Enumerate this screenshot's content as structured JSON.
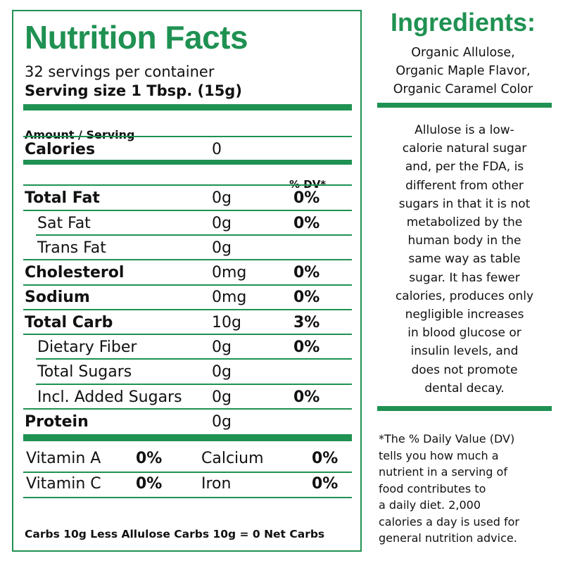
{
  "nutrition": {
    "title": "Nutrition Facts",
    "servings": "32 servings per container",
    "serving_size": "Serving size 1 Tbsp. (15g)",
    "amount_header": "Amount / Serving",
    "calories_label": "Calories",
    "calories_value": "0",
    "dv_header": "% DV*",
    "rows": [
      {
        "label": "Total Fat",
        "amount": "0g",
        "dv": "0%"
      },
      {
        "label": "Sat Fat",
        "amount": "0g",
        "dv": "0%"
      },
      {
        "label": "Trans Fat",
        "amount": "0g",
        "dv": ""
      },
      {
        "label": "Cholesterol",
        "amount": "0mg",
        "dv": "0%"
      },
      {
        "label": "Sodium",
        "amount": "0mg",
        "dv": "0%"
      },
      {
        "label": "Total Carb",
        "amount": "10g",
        "dv": "3%"
      },
      {
        "label": "Dietary Fiber",
        "amount": "0g",
        "dv": "0%"
      },
      {
        "label": "Total Sugars",
        "amount": "0g",
        "dv": ""
      },
      {
        "label": "Incl. Added Sugars",
        "amount": "0g",
        "dv": "0%"
      },
      {
        "label": "Protein",
        "amount": "0g",
        "dv": ""
      }
    ],
    "vitamins": [
      {
        "label": "Vitamin A",
        "dv": "0%"
      },
      {
        "label": "Calcium",
        "dv": "0%"
      },
      {
        "label": "Vitamin C",
        "dv": "0%"
      },
      {
        "label": "Iron",
        "dv": "0%"
      }
    ],
    "net_carbs": "Carbs 10g Less Allulose Carbs 10g = 0 Net Carbs"
  },
  "ingredients": {
    "title": "Ingredients:",
    "lines": [
      "Organic Allulose,",
      "Organic Maple Flavor,",
      "Organic Caramel Color"
    ]
  },
  "allulose_info": {
    "lines": [
      "Allulose is a low-",
      "calorie natural sugar",
      "and, per the FDA, is",
      "different from other",
      "sugars in that it is not",
      "metabolized by the",
      "human body in the",
      "same way as table",
      "sugar. It has fewer",
      "calories, produces only",
      "negligible increases",
      "in blood glucose or",
      "insulin levels, and",
      "does not promote",
      "dental decay."
    ]
  },
  "dv_footnote": {
    "lines": [
      "*The % Daily Value (DV)",
      "tells you how much a",
      "nutrient in a serving of",
      "food contributes to",
      "a daily diet. 2,000",
      "calories a day is used for",
      "general nutrition advice."
    ]
  },
  "colors": {
    "accent": "#1f9152",
    "text": "#111111",
    "background": "#ffffff"
  }
}
